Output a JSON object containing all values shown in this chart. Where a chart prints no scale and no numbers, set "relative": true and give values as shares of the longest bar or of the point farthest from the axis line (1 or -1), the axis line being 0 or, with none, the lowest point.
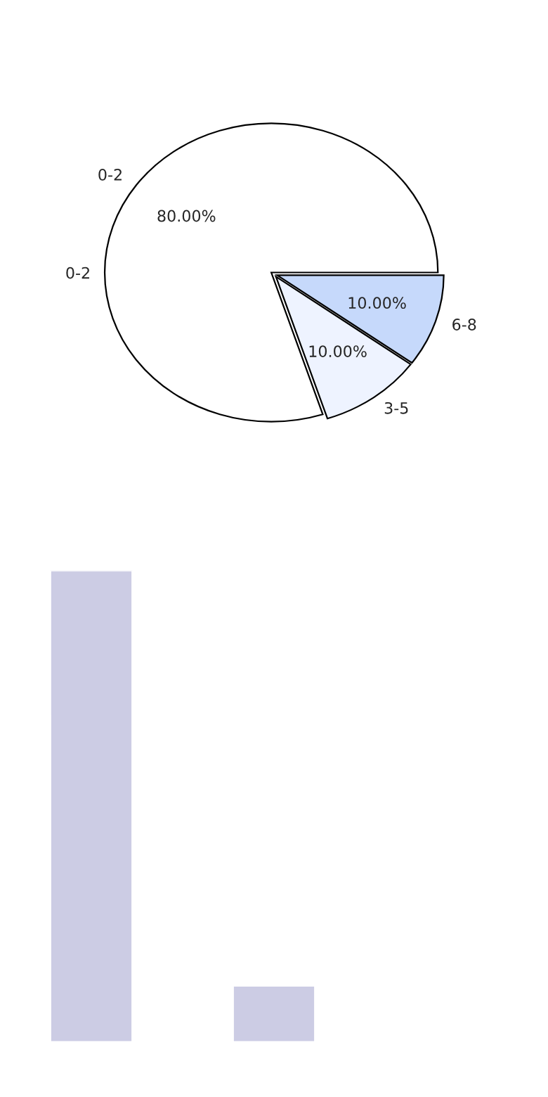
{
  "chart_data": [
    {
      "type": "pie",
      "categories": [
        "0-2",
        "3-5",
        "6-8"
      ],
      "values": [
        80,
        10,
        10
      ],
      "colors": [
        "#ffffff",
        "#eef3ff",
        "#c6d9fb"
      ],
      "value_labels": [
        "80.00%",
        "10.00%",
        "10.00%"
      ],
      "annotations": [
        "0-2"
      ]
    },
    {
      "type": "bar",
      "relative": true,
      "categories": [
        null,
        null
      ],
      "values": [
        1,
        0.12
      ],
      "color": "#cccce4"
    }
  ]
}
